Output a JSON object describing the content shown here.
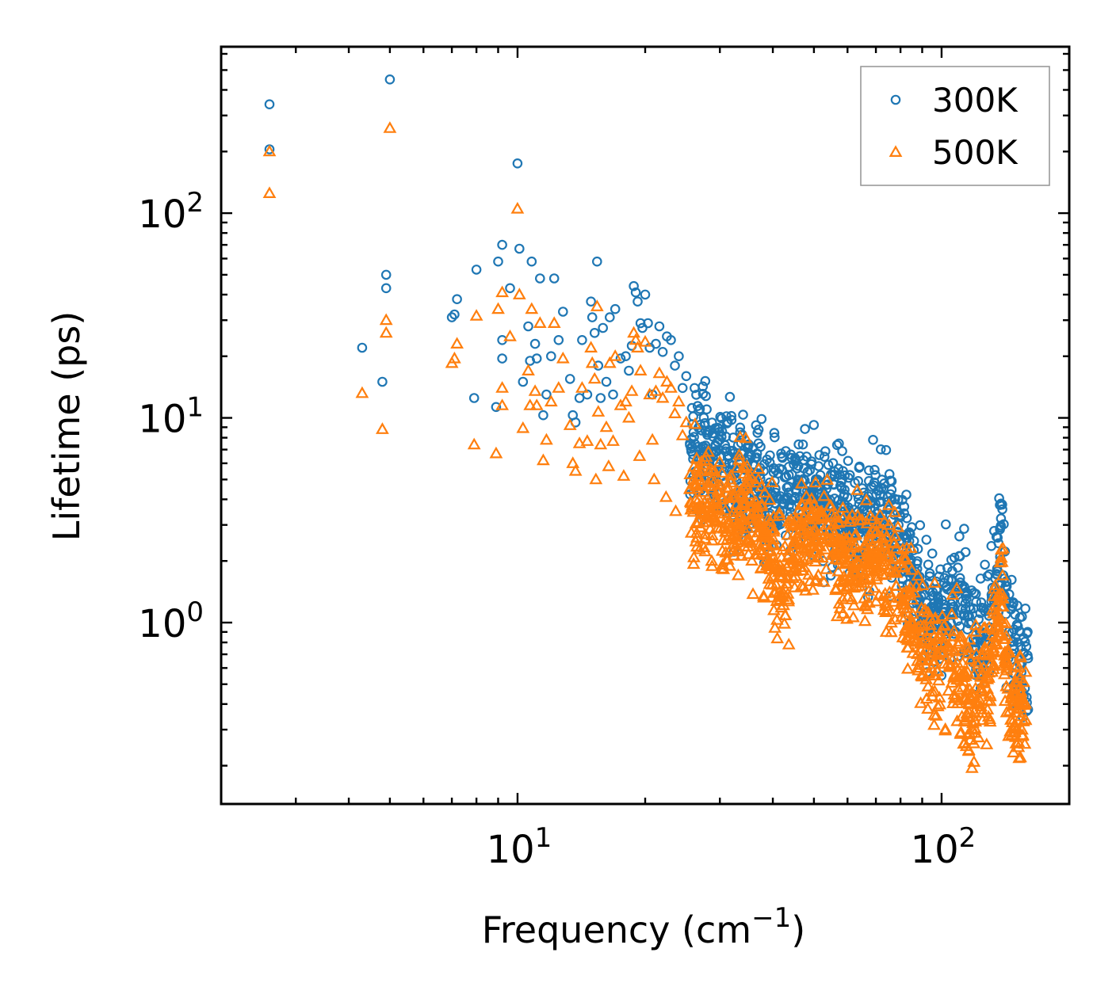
{
  "chart_data": {
    "type": "scatter",
    "xscale": "log",
    "yscale": "log",
    "xlim": [
      2.0,
      200.0
    ],
    "ylim": [
      0.13,
      650.0
    ],
    "xlabel": "Frequency (cm",
    "xlabel_sup": "−1",
    "xlabel_close": ")",
    "ylabel": "Lifetime (ps)",
    "x_ticks": [
      {
        "value": 10,
        "base": "10",
        "exp": "1"
      },
      {
        "value": 100,
        "base": "10",
        "exp": "2"
      }
    ],
    "y_ticks": [
      {
        "value": 1,
        "base": "10",
        "exp": "0"
      },
      {
        "value": 10,
        "base": "10",
        "exp": "1"
      },
      {
        "value": 100,
        "base": "10",
        "exp": "2"
      }
    ],
    "legend_position": "top-right",
    "series": [
      {
        "name": "300K",
        "marker": "circle",
        "color": "#1f77b4",
        "points": [
          [
            2.6,
            340
          ],
          [
            2.6,
            205
          ],
          [
            4.3,
            22
          ],
          [
            4.8,
            15
          ],
          [
            4.9,
            50
          ],
          [
            4.9,
            43
          ],
          [
            5.0,
            450
          ],
          [
            7.0,
            31
          ],
          [
            7.1,
            32
          ],
          [
            7.2,
            38
          ],
          [
            7.9,
            12.5
          ],
          [
            8.0,
            53
          ],
          [
            8.9,
            11.3
          ],
          [
            9.0,
            58
          ],
          [
            9.2,
            70
          ],
          [
            9.2,
            24
          ],
          [
            9.2,
            19.5
          ],
          [
            9.6,
            43
          ],
          [
            10.0,
            175
          ],
          [
            10.1,
            67
          ],
          [
            10.3,
            15
          ],
          [
            10.6,
            28
          ],
          [
            10.7,
            19
          ],
          [
            10.8,
            58
          ],
          [
            11.0,
            23
          ],
          [
            11.1,
            19.5
          ],
          [
            11.3,
            48
          ],
          [
            11.5,
            10.3
          ],
          [
            11.7,
            13
          ],
          [
            12.0,
            20
          ],
          [
            12.2,
            48
          ],
          [
            12.5,
            24
          ],
          [
            12.8,
            33
          ],
          [
            13.3,
            15.5
          ],
          [
            13.5,
            10.3
          ],
          [
            13.7,
            9.5
          ],
          [
            14.0,
            12.5
          ],
          [
            14.2,
            24
          ],
          [
            14.6,
            13
          ],
          [
            14.9,
            37
          ],
          [
            15.0,
            31
          ],
          [
            15.2,
            26
          ],
          [
            15.4,
            58
          ],
          [
            15.5,
            18
          ],
          [
            15.7,
            12.5
          ],
          [
            15.9,
            27.5
          ],
          [
            16.2,
            15
          ],
          [
            16.5,
            31
          ],
          [
            16.8,
            13
          ],
          [
            17.0,
            34
          ],
          [
            17.5,
            19.5
          ],
          [
            18.0,
            20
          ],
          [
            18.3,
            17
          ],
          [
            18.6,
            22.5
          ],
          [
            18.8,
            44
          ],
          [
            19.0,
            41
          ],
          [
            19.2,
            37
          ],
          [
            19.5,
            29
          ],
          [
            19.7,
            27.5
          ],
          [
            20.0,
            40
          ],
          [
            20.3,
            29
          ],
          [
            20.5,
            22
          ],
          [
            20.8,
            13
          ],
          [
            21.2,
            23
          ],
          [
            21.6,
            28
          ],
          [
            22.0,
            21
          ],
          [
            22.5,
            25
          ],
          [
            23.0,
            24
          ],
          [
            23.5,
            18
          ],
          [
            24.0,
            20
          ],
          [
            24.5,
            14
          ],
          [
            25.0,
            16
          ],
          [
            25.5,
            7.5
          ],
          [
            26.0,
            8.5
          ],
          [
            26.5,
            4.4
          ],
          [
            27.5,
            10
          ],
          [
            28.5,
            6.5
          ],
          [
            30.0,
            7.8
          ],
          [
            32.0,
            5.5
          ],
          [
            33.5,
            8.5
          ],
          [
            35.0,
            6.5
          ],
          [
            36.5,
            9.2
          ],
          [
            37.0,
            7.5
          ]
        ],
        "trend": [
          [
            25.5,
            7.5
          ],
          [
            28,
            6.8
          ],
          [
            31,
            5.6
          ],
          [
            34,
            5.0
          ],
          [
            38,
            4.3
          ],
          [
            41,
            3.8
          ],
          [
            44,
            5.0
          ],
          [
            48,
            4.2
          ],
          [
            52,
            3.6
          ],
          [
            57,
            3.8
          ],
          [
            62,
            3.4
          ],
          [
            67,
            3.0
          ],
          [
            72,
            3.6
          ],
          [
            78,
            2.8
          ],
          [
            84,
            1.8
          ],
          [
            90,
            1.25
          ],
          [
            96,
            1.05
          ],
          [
            103,
            1.2
          ],
          [
            110,
            1.5
          ],
          [
            116,
            1.0
          ],
          [
            122,
            0.85
          ],
          [
            130,
            1.3
          ],
          [
            135,
            1.8
          ],
          [
            139,
            2.4
          ],
          [
            143,
            1.1
          ],
          [
            148,
            0.75
          ],
          [
            155,
            0.65
          ],
          [
            160,
            0.6
          ]
        ],
        "jitter": 0.14
      },
      {
        "name": "500K",
        "marker": "triangle",
        "color": "#ff7f0e",
        "points": [
          [
            2.6,
            200
          ],
          [
            2.6,
            125
          ],
          [
            4.3,
            13.2
          ],
          [
            4.8,
            8.8
          ],
          [
            4.9,
            30
          ],
          [
            4.9,
            26
          ],
          [
            5.0,
            260
          ],
          [
            7.0,
            18.5
          ],
          [
            7.1,
            19.5
          ],
          [
            7.2,
            23
          ],
          [
            7.9,
            7.4
          ],
          [
            8.0,
            31.5
          ],
          [
            8.9,
            6.7
          ],
          [
            9.0,
            34
          ],
          [
            9.2,
            41
          ],
          [
            9.2,
            14
          ],
          [
            9.2,
            11.5
          ],
          [
            9.6,
            25
          ],
          [
            10.0,
            105
          ],
          [
            10.1,
            40
          ],
          [
            10.3,
            8.9
          ],
          [
            10.6,
            17
          ],
          [
            10.7,
            11.5
          ],
          [
            10.8,
            34
          ],
          [
            11.0,
            13.5
          ],
          [
            11.1,
            11.5
          ],
          [
            11.3,
            29
          ],
          [
            11.5,
            6.2
          ],
          [
            11.7,
            7.8
          ],
          [
            12.0,
            12
          ],
          [
            12.2,
            29
          ],
          [
            12.5,
            14
          ],
          [
            12.8,
            19.5
          ],
          [
            13.3,
            9.2
          ],
          [
            13.5,
            6
          ],
          [
            13.7,
            5.5
          ],
          [
            14.0,
            7.5
          ],
          [
            14.2,
            14
          ],
          [
            14.6,
            7.7
          ],
          [
            14.9,
            22
          ],
          [
            15.0,
            18.5
          ],
          [
            15.2,
            15.5
          ],
          [
            15.4,
            35
          ],
          [
            15.5,
            10.7
          ],
          [
            15.7,
            7.4
          ],
          [
            16.2,
            9
          ],
          [
            16.5,
            18.5
          ],
          [
            16.8,
            7.7
          ],
          [
            17.0,
            20
          ],
          [
            17.5,
            11.5
          ],
          [
            18.0,
            12
          ],
          [
            18.3,
            10
          ],
          [
            18.6,
            13.5
          ],
          [
            18.8,
            26
          ],
          [
            19.0,
            24
          ],
          [
            19.2,
            22
          ],
          [
            19.5,
            17
          ],
          [
            20.0,
            23.5
          ],
          [
            20.5,
            13
          ],
          [
            20.8,
            7.8
          ],
          [
            21.2,
            13.5
          ],
          [
            21.6,
            16.5
          ],
          [
            22.0,
            12.5
          ],
          [
            22.5,
            15
          ],
          [
            23.0,
            14
          ],
          [
            23.5,
            10.5
          ],
          [
            24.0,
            12
          ],
          [
            24.5,
            8.2
          ],
          [
            25.0,
            9.5
          ],
          [
            25.5,
            4.5
          ],
          [
            26.0,
            5
          ],
          [
            26.5,
            2.6
          ],
          [
            15.3,
            5.0
          ],
          [
            16.4,
            5.8
          ],
          [
            17.8,
            5.2
          ],
          [
            19.4,
            6.5
          ],
          [
            21.0,
            5.0
          ],
          [
            22.4,
            4.1
          ],
          [
            23.6,
            3.5
          ]
        ],
        "trend": [
          [
            25.5,
            4.3
          ],
          [
            28,
            3.7
          ],
          [
            31,
            3.3
          ],
          [
            34,
            3.6
          ],
          [
            37,
            3.0
          ],
          [
            40,
            2.0
          ],
          [
            43,
            1.55
          ],
          [
            46,
            2.8
          ],
          [
            50,
            2.5
          ],
          [
            54,
            2.9
          ],
          [
            58,
            2.1
          ],
          [
            63,
            1.75
          ],
          [
            68,
            2.4
          ],
          [
            73,
            1.9
          ],
          [
            78,
            2.1
          ],
          [
            83,
            1.15
          ],
          [
            88,
            0.9
          ],
          [
            94,
            0.65
          ],
          [
            100,
            0.62
          ],
          [
            106,
            0.7
          ],
          [
            112,
            0.45
          ],
          [
            118,
            0.4
          ],
          [
            124,
            0.5
          ],
          [
            130,
            0.6
          ],
          [
            135,
            0.9
          ],
          [
            139,
            1.5
          ],
          [
            142,
            0.7
          ],
          [
            146,
            0.35
          ],
          [
            152,
            0.42
          ],
          [
            158,
            0.34
          ]
        ],
        "jitter": 0.14
      }
    ]
  }
}
